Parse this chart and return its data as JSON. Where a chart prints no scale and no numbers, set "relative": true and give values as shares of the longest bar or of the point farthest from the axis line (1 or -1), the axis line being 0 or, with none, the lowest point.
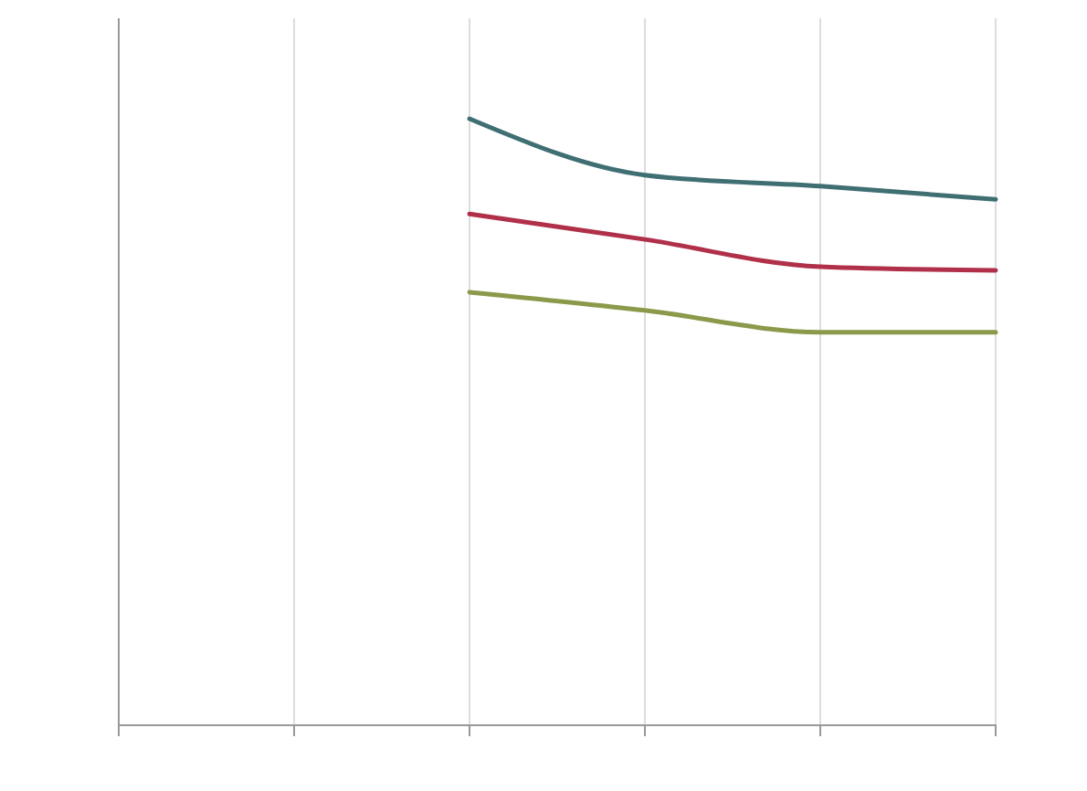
{
  "chart_data": {
    "type": "line",
    "relative": true,
    "categories": [
      null,
      null,
      null,
      null,
      null,
      null
    ],
    "grid": "x",
    "series": [
      {
        "color": "#3f6f73",
        "values": [
          null,
          null,
          1.0,
          0.907,
          0.889,
          0.867
        ]
      },
      {
        "color": "#b0304a",
        "values": [
          null,
          null,
          0.843,
          0.801,
          0.756,
          0.75
        ]
      },
      {
        "color": "#8a9a4a",
        "values": [
          null,
          null,
          0.714,
          0.684,
          0.648,
          0.648
        ]
      }
    ]
  }
}
